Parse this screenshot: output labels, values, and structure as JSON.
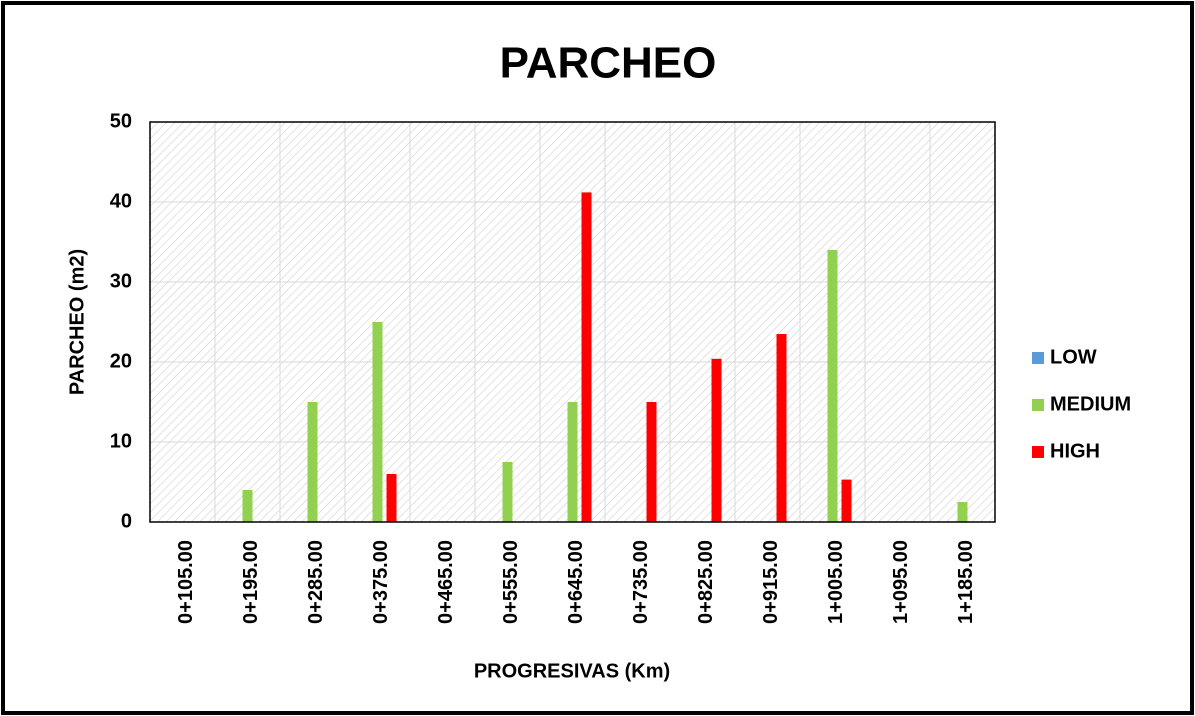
{
  "chart_data": {
    "type": "bar",
    "title": "PARCHEO",
    "x_label": "PROGRESIVAS (Km)",
    "y_label": "PARCHEO (m2)",
    "categories": [
      "0+105.00",
      "0+195.00",
      "0+285.00",
      "0+375.00",
      "0+465.00",
      "0+555.00",
      "0+645.00",
      "0+735.00",
      "0+825.00",
      "0+915.00",
      "1+005.00",
      "1+095.00",
      "1+185.00"
    ],
    "series": [
      {
        "name": "LOW",
        "color": "#5b9bd5",
        "values": [
          0,
          0,
          0,
          0,
          0,
          0,
          0,
          0,
          0,
          0,
          0,
          0,
          0
        ]
      },
      {
        "name": "MEDIUM",
        "color": "#92d050",
        "values": [
          0,
          4,
          15,
          25,
          0,
          7.5,
          15,
          0,
          0,
          0,
          34,
          0,
          2.5
        ]
      },
      {
        "name": "HIGH",
        "color": "#ff0000",
        "values": [
          0,
          0,
          0,
          6,
          0,
          0,
          41.2,
          15,
          20.4,
          23.5,
          5.3,
          0,
          0
        ]
      }
    ],
    "ylim": [
      0,
      50
    ],
    "yticks": [
      0,
      10,
      20,
      30,
      40,
      50
    ],
    "grid": true,
    "legend": "right"
  }
}
